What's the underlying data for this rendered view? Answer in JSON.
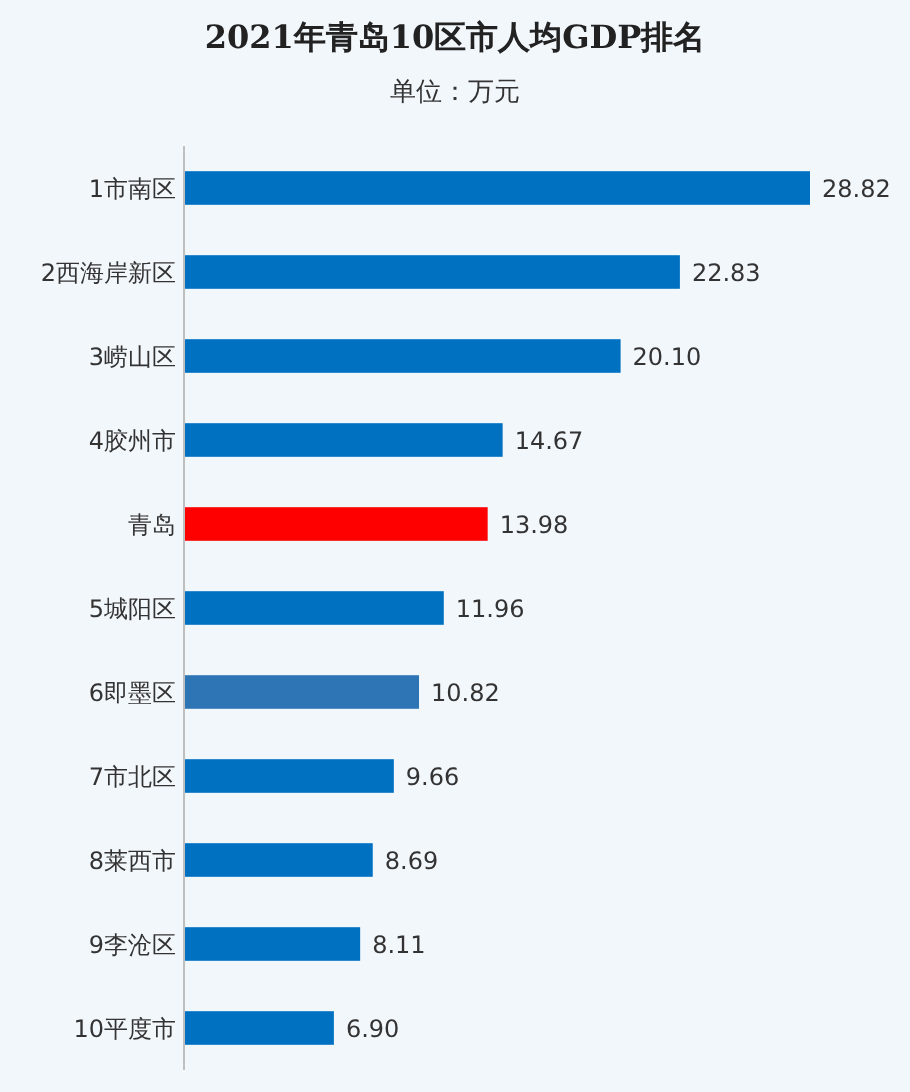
{
  "chart_data": {
    "type": "bar",
    "orientation": "horizontal",
    "title": "2021年青岛10区市人均GDP排名",
    "subtitle": "单位：万元",
    "categories": [
      "1市南区",
      "2西海岸新区",
      "3崂山区",
      "4胶州市",
      "青岛",
      "5城阳区",
      "6即墨区",
      "7市北区",
      "8莱西市",
      "9李沧区",
      "10平度市"
    ],
    "values": [
      28.82,
      22.83,
      20.1,
      14.67,
      13.98,
      11.96,
      10.82,
      9.66,
      8.69,
      8.11,
      6.9
    ],
    "value_labels": [
      "28.82",
      "22.83",
      "20.10",
      "14.67",
      "13.98",
      "11.96",
      "10.82",
      "9.66",
      "8.69",
      "8.11",
      "6.90"
    ],
    "colors": [
      "#0070c0",
      "#0070c0",
      "#0070c0",
      "#0070c0",
      "#ff0000",
      "#0070c0",
      "#2e75b6",
      "#0070c0",
      "#0070c0",
      "#0070c0",
      "#0070c0"
    ],
    "data_labels": true
  }
}
